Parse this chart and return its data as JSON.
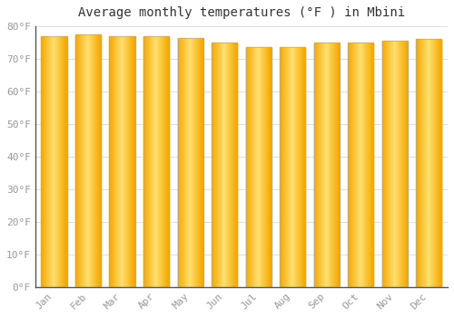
{
  "title": "Average monthly temperatures (°F ) in Mbini",
  "months": [
    "Jan",
    "Feb",
    "Mar",
    "Apr",
    "May",
    "Jun",
    "Jul",
    "Aug",
    "Sep",
    "Oct",
    "Nov",
    "Dec"
  ],
  "values": [
    77,
    77.5,
    77,
    77,
    76.5,
    75,
    73.5,
    73.5,
    75,
    75,
    75.5,
    76
  ],
  "bar_color_center": "#FFD870",
  "bar_color_edge": "#F5A800",
  "bar_edge_color": "#AAAAAA",
  "background_color": "#FFFFFF",
  "grid_color": "#DDDDDD",
  "ylim": [
    0,
    80
  ],
  "yticks": [
    0,
    10,
    20,
    30,
    40,
    50,
    60,
    70,
    80
  ],
  "ytick_labels": [
    "0°F",
    "10°F",
    "20°F",
    "30°F",
    "40°F",
    "50°F",
    "60°F",
    "70°F",
    "80°F"
  ],
  "tick_color": "#999999",
  "title_fontsize": 10,
  "tick_fontsize": 8,
  "font_family": "monospace"
}
